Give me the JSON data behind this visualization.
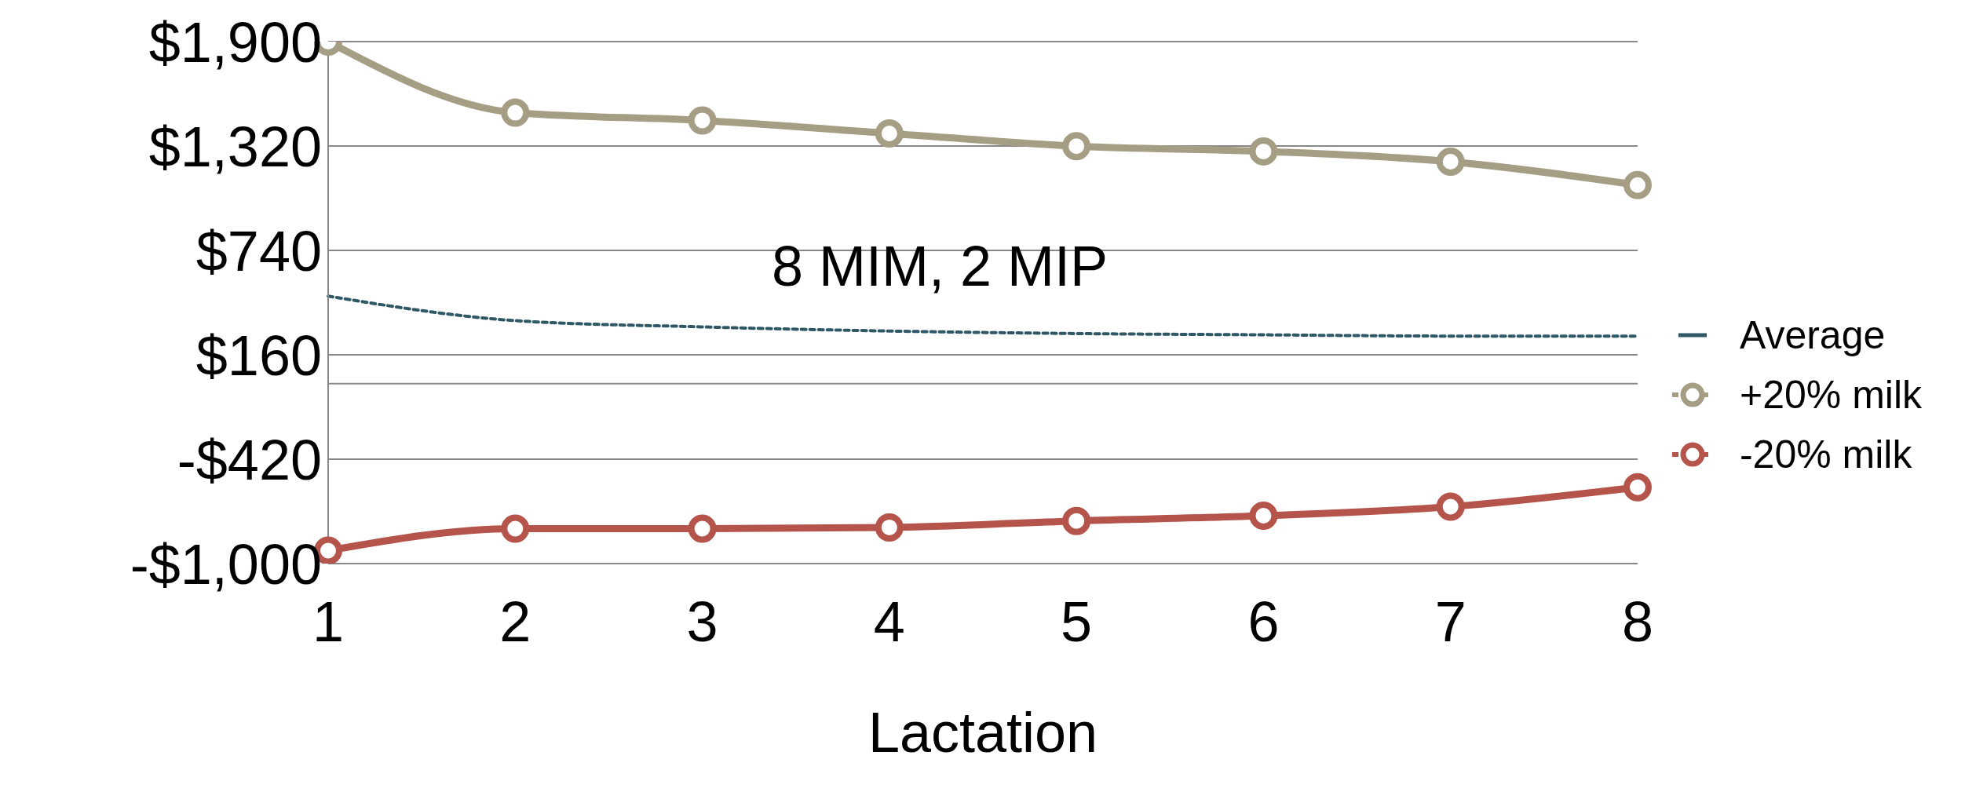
{
  "chart_data": {
    "type": "line",
    "xlabel": "Lactation",
    "categories": [
      "1",
      "2",
      "3",
      "4",
      "5",
      "6",
      "7",
      "8"
    ],
    "series": [
      {
        "name": "Average",
        "color": "#2f5866",
        "values": [
          486,
          350,
          315,
          292,
          278,
          271,
          264,
          264
        ],
        "marker": "none",
        "line_style": "dotted"
      },
      {
        "name": "+20% milk",
        "color": "#a59e85",
        "values": [
          1900,
          1505,
          1462,
          1390,
          1319,
          1290,
          1233,
          1103
        ],
        "marker": "circle",
        "line_style": "solid"
      },
      {
        "name": "-20% milk",
        "color": "#b5544a",
        "values": [
          -928,
          -806,
          -806,
          -799,
          -763,
          -734,
          -684,
          -576
        ],
        "marker": "circle",
        "line_style": "solid"
      }
    ],
    "ylim": [
      -1000,
      1900
    ],
    "yticks": [
      {
        "value": -1000,
        "label": "-$1,000"
      },
      {
        "value": -420,
        "label": "-$420"
      },
      {
        "value": 160,
        "label": "$160"
      },
      {
        "value": 740,
        "label": "$740"
      },
      {
        "value": 1320,
        "label": "$1,320"
      },
      {
        "value": 1900,
        "label": "$1,900"
      }
    ],
    "ref_lines": [
      {
        "axis": "y",
        "value": 0,
        "color": "#888888"
      }
    ],
    "grid": "y",
    "legend": "right",
    "annotations": [
      "8 MIM, 2 MIP"
    ]
  }
}
